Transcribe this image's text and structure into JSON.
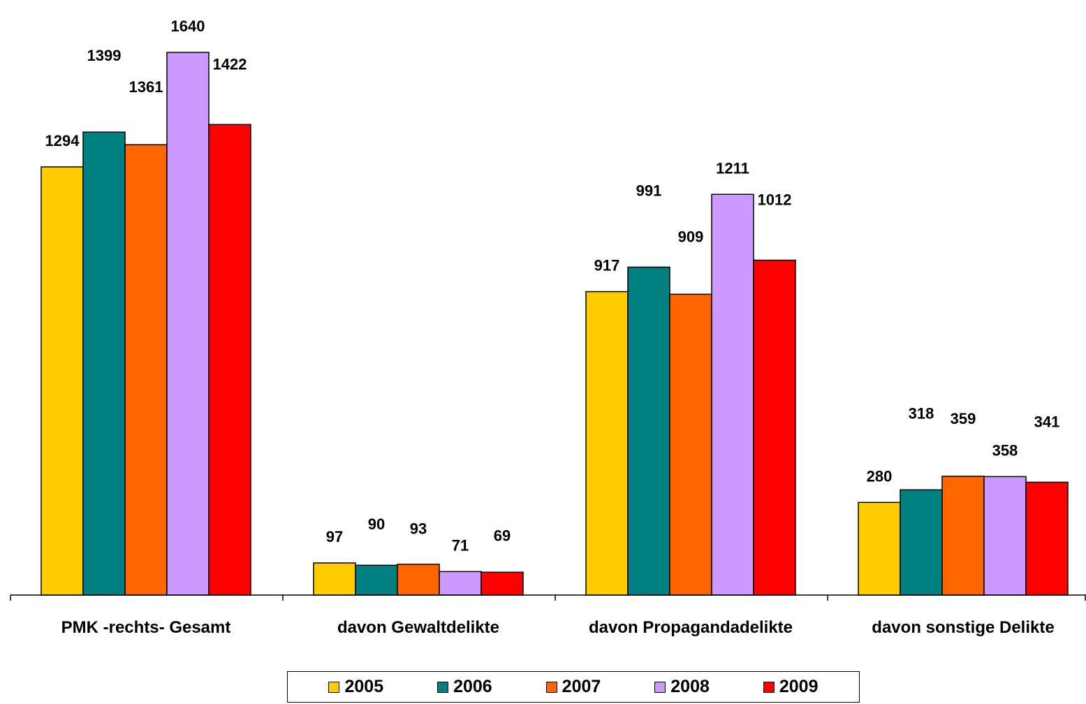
{
  "chart_data": {
    "type": "bar",
    "title": "",
    "xlabel": "",
    "ylabel": "",
    "ylim": [
      0,
      1640
    ],
    "grid": false,
    "legend_position": "bottom",
    "categories": [
      "PMK -rechts- Gesamt",
      "davon Gewaltdelikte",
      "davon Propagandadelikte",
      "davon sonstige Delikte"
    ],
    "series": [
      {
        "name": "2005",
        "color": "#FFCC00",
        "values": [
          1294,
          97,
          917,
          280
        ]
      },
      {
        "name": "2006",
        "color": "#008080",
        "values": [
          1399,
          90,
          991,
          318
        ]
      },
      {
        "name": "2007",
        "color": "#FF6600",
        "values": [
          1361,
          93,
          909,
          359
        ]
      },
      {
        "name": "2008",
        "color": "#CC99FF",
        "values": [
          1640,
          71,
          1211,
          358
        ]
      },
      {
        "name": "2009",
        "color": "#FF0000",
        "values": [
          1422,
          69,
          1012,
          341
        ]
      }
    ]
  }
}
